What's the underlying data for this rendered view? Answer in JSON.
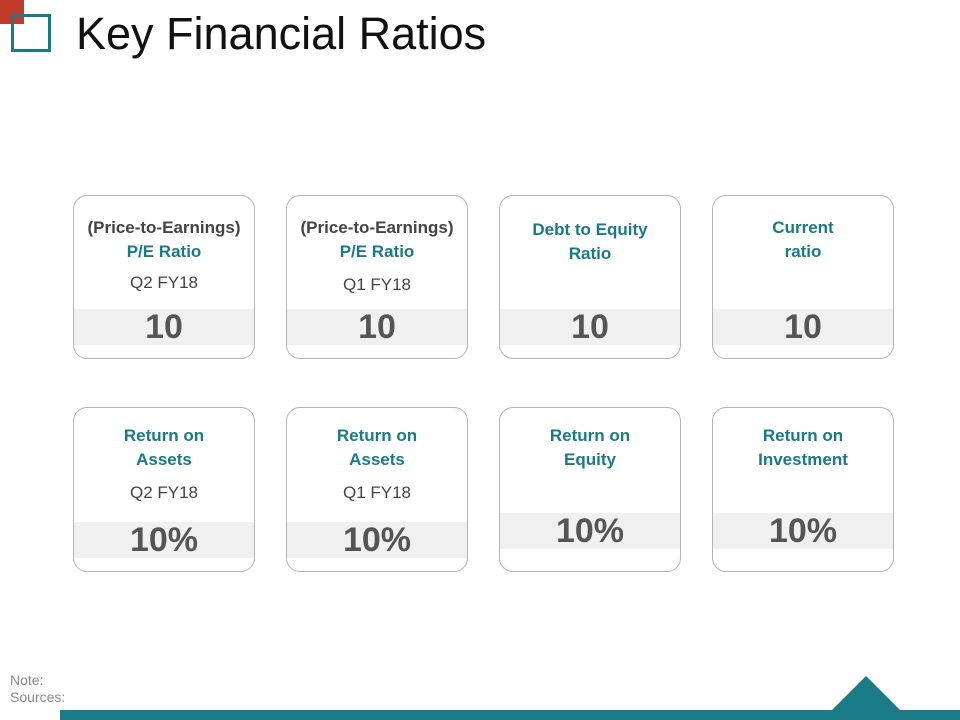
{
  "title": "Key Financial Ratios",
  "colors": {
    "accent": "#1a7a86",
    "logo_red": "#c0392b",
    "band": "#f0f0f0"
  },
  "cards": [
    {
      "line1": "(Price-to-Earnings)",
      "line2": "P/E Ratio",
      "period": "Q2 FY18",
      "value": "10"
    },
    {
      "line1": "(Price-to-Earnings)",
      "line2": "P/E Ratio",
      "period": "Q1 FY18",
      "value": "10"
    },
    {
      "line1": "Debt to Equity",
      "line2": "Ratio",
      "period": "",
      "value": "10"
    },
    {
      "line1": "Current",
      "line2": "ratio",
      "period": "",
      "value": "10"
    },
    {
      "line1": "Return on",
      "line2": "Assets",
      "period": "Q2 FY18",
      "value": "10%"
    },
    {
      "line1": "Return on",
      "line2": "Assets",
      "period": "Q1 FY18",
      "value": "10%"
    },
    {
      "line1": "Return on",
      "line2": "Equity",
      "period": "",
      "value": "10%"
    },
    {
      "line1": "Return on",
      "line2": "Investment",
      "period": "",
      "value": "10%"
    }
  ],
  "footer": {
    "note": "Note:",
    "sources": "Sources:"
  }
}
